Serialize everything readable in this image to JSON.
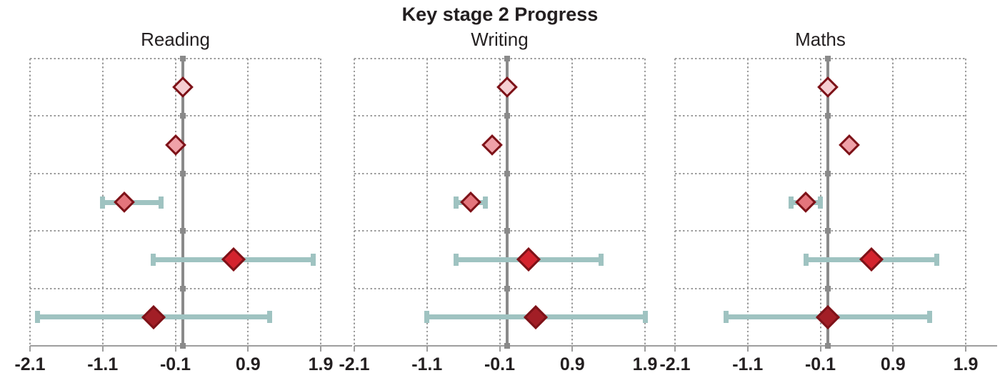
{
  "chart_data": {
    "type": "forest",
    "title": "Key stage 2 Progress",
    "marker": "diamond",
    "grid": "dotted",
    "legend": "none",
    "xlim": [
      -2.1,
      1.9
    ],
    "x_ticks": [
      -2.1,
      -1.1,
      -0.1,
      0.9,
      1.9
    ],
    "x_tick_labels": [
      "-2.1",
      "-1.1",
      "-0.1",
      "0.9",
      "1.9"
    ],
    "reference_line": 0,
    "row_count": 5,
    "panels": [
      {
        "title": "Reading",
        "rows": [
          {
            "value": 0.0,
            "ci_low": null,
            "ci_high": null
          },
          {
            "value": -0.1,
            "ci_low": null,
            "ci_high": null
          },
          {
            "value": -0.8,
            "ci_low": -1.1,
            "ci_high": -0.3
          },
          {
            "value": 0.7,
            "ci_low": -0.4,
            "ci_high": 1.8
          },
          {
            "value": -0.4,
            "ci_low": -2.0,
            "ci_high": 1.2
          }
        ]
      },
      {
        "title": "Writing",
        "rows": [
          {
            "value": 0.0,
            "ci_low": null,
            "ci_high": null
          },
          {
            "value": -0.2,
            "ci_low": null,
            "ci_high": null
          },
          {
            "value": -0.5,
            "ci_low": -0.7,
            "ci_high": -0.3
          },
          {
            "value": 0.3,
            "ci_low": -0.7,
            "ci_high": 1.3
          },
          {
            "value": 0.4,
            "ci_low": -1.1,
            "ci_high": 1.9
          }
        ]
      },
      {
        "title": "Maths",
        "rows": [
          {
            "value": 0.0,
            "ci_low": null,
            "ci_high": null
          },
          {
            "value": 0.3,
            "ci_low": null,
            "ci_high": null
          },
          {
            "value": -0.3,
            "ci_low": -0.5,
            "ci_high": -0.1
          },
          {
            "value": 0.6,
            "ci_low": -0.3,
            "ci_high": 1.5
          },
          {
            "value": 0.0,
            "ci_low": -1.4,
            "ci_high": 1.4
          }
        ]
      }
    ],
    "colors": {
      "diamond_fills": [
        "#f5ced2",
        "#efa1a8",
        "#e4757c",
        "#d4232e",
        "#a21e26"
      ],
      "diamond_border": "#7d1218",
      "ci_bar": "#9fc3c1",
      "reference_line": "#8a8a8a",
      "grid": "#9c9c9c",
      "axis": "#9e9e9e",
      "text": "#231f20"
    }
  }
}
